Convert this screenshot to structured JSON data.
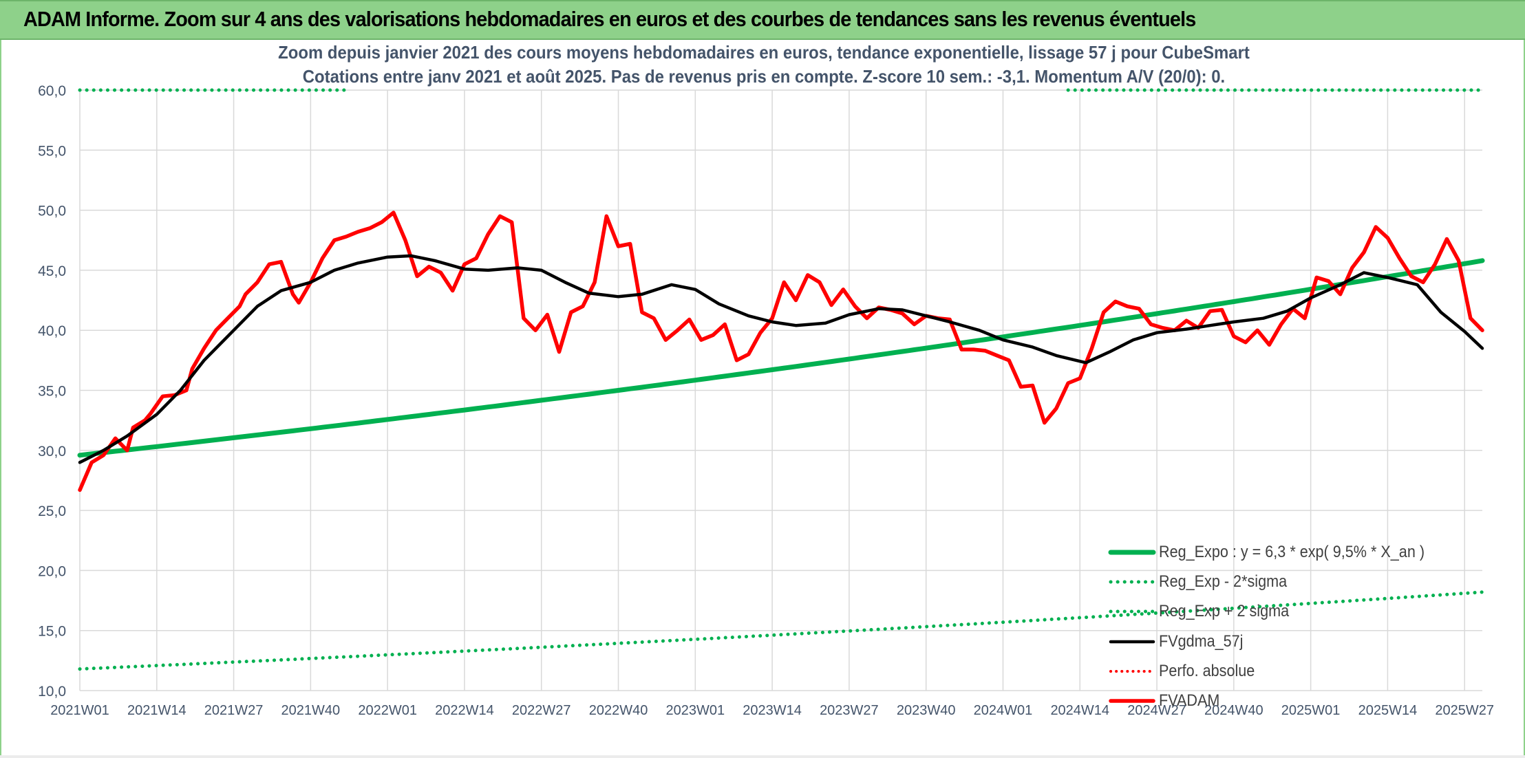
{
  "header": {
    "title": "ADAM Informe. Zoom sur 4 ans des valorisations hebdomadaires en euros et des courbes de tendances sans les revenus éventuels"
  },
  "colors": {
    "header_bg": "#8ed18a",
    "reg_expo": "#00b050",
    "fvgdma": "#000000",
    "fvadam": "#ff0000",
    "perfo": "#ff0000",
    "grid": "#d9d9d9",
    "axis_text": "#44546a"
  },
  "chart_data": {
    "type": "line",
    "title": "Zoom depuis janvier 2021 des cours moyens hebdomadaires en euros, tendance exponentielle, lissage 57 j pour CubeSmart",
    "subtitle": "Cotations entre janv 2021 et août 2025. Pas de revenus pris en compte. Z-score 10 sem.: -3,1. Momentum A/V (20/0): 0.",
    "x_ticks": [
      "2021W01",
      "2021W14",
      "2021W27",
      "2021W40",
      "2022W01",
      "2022W14",
      "2022W27",
      "2022W40",
      "2023W01",
      "2023W14",
      "2023W27",
      "2023W40",
      "2024W01",
      "2024W14",
      "2024W27",
      "2024W40",
      "2025W01",
      "2025W14",
      "2025W27"
    ],
    "y_ticks": [
      "10,0",
      "15,0",
      "20,0",
      "25,0",
      "30,0",
      "35,0",
      "40,0",
      "45,0",
      "50,0",
      "55,0",
      "60,0"
    ],
    "ylim": [
      10,
      60
    ],
    "x_range_weeks": [
      0,
      237
    ],
    "legend_position": "bottom-right",
    "grid": true,
    "legend": [
      "Reg_Expo : y = 6,3 * exp( 9,5% *  X_an )",
      "Reg_Exp - 2*sigma",
      "Reg_Exp + 2 sigma",
      "FVgdma_57j",
      "Perfo. absolue",
      "FVADAM"
    ],
    "series": [
      {
        "name": "Reg_Expo : y = 6,3 * exp( 9,5% *  X_an )",
        "style": "solid-thick",
        "x": [
          0,
          237
        ],
        "values": [
          29.6,
          45.8
        ],
        "interp": "exp"
      },
      {
        "name": "Reg_Exp - 2*sigma",
        "style": "dotted",
        "x": [
          0,
          237
        ],
        "values": [
          11.8,
          18.2
        ],
        "interp": "exp"
      },
      {
        "name": "Reg_Exp + 2 sigma",
        "style": "dotted",
        "x": [
          0,
          237
        ],
        "values": [
          60.0,
          60.0
        ],
        "segments": [
          [
            0,
            45
          ],
          [
            167,
            237
          ]
        ]
      },
      {
        "name": "FVgdma_57j",
        "style": "solid",
        "x": [
          0,
          4,
          8,
          13,
          17,
          21,
          26,
          30,
          34,
          39,
          43,
          47,
          52,
          56,
          60,
          65,
          69,
          74,
          78,
          82,
          86,
          91,
          95,
          100,
          104,
          108,
          113,
          117,
          121,
          126,
          130,
          135,
          139,
          143,
          147,
          152,
          156,
          161,
          165,
          170,
          174,
          178,
          182,
          187,
          191,
          195,
          200,
          204,
          208,
          213,
          217,
          221,
          226,
          230,
          234,
          237
        ],
        "values": [
          29.0,
          30.0,
          31.2,
          33.0,
          35.0,
          37.5,
          40.0,
          42.0,
          43.3,
          44.0,
          45.0,
          45.6,
          46.1,
          46.2,
          45.8,
          45.1,
          45.0,
          45.2,
          45.0,
          44.0,
          43.1,
          42.8,
          43.0,
          43.8,
          43.4,
          42.2,
          41.2,
          40.7,
          40.4,
          40.6,
          41.3,
          41.8,
          41.7,
          41.2,
          40.7,
          40.0,
          39.2,
          38.6,
          37.9,
          37.3,
          38.2,
          39.2,
          39.8,
          40.1,
          40.4,
          40.7,
          41.0,
          41.6,
          42.7,
          43.8,
          44.8,
          44.4,
          43.8,
          41.5,
          39.9,
          38.5
        ]
      },
      {
        "name": "FVADAM",
        "style": "solid-thick",
        "x": [
          0,
          2,
          4,
          6,
          8,
          9,
          11,
          12,
          14,
          16,
          18,
          19,
          21,
          23,
          25,
          27,
          28,
          30,
          32,
          34,
          36,
          37,
          39,
          41,
          43,
          45,
          47,
          49,
          51,
          53,
          55,
          57,
          59,
          61,
          63,
          65,
          67,
          69,
          71,
          73,
          75,
          77,
          79,
          81,
          83,
          85,
          87,
          89,
          91,
          93,
          95,
          97,
          99,
          101,
          103,
          105,
          107,
          109,
          111,
          113,
          115,
          117,
          119,
          121,
          123,
          125,
          127,
          129,
          131,
          133,
          135,
          137,
          139,
          141,
          143,
          145,
          147,
          149,
          151,
          153,
          155,
          157,
          159,
          161,
          163,
          165,
          167,
          169,
          171,
          173,
          175,
          177,
          179,
          181,
          183,
          185,
          187,
          189,
          191,
          193,
          195,
          197,
          199,
          201,
          203,
          205,
          207,
          209,
          211,
          213,
          215,
          217,
          219,
          221,
          223,
          225,
          227,
          229,
          231,
          233,
          235,
          237
        ],
        "values": [
          26.7,
          29.0,
          29.6,
          31.0,
          30.0,
          31.9,
          32.5,
          33.1,
          34.5,
          34.6,
          35.0,
          36.8,
          38.5,
          40.0,
          41.0,
          42.0,
          43.0,
          44.0,
          45.5,
          45.7,
          43.0,
          42.3,
          44.0,
          46.0,
          47.5,
          47.8,
          48.2,
          48.5,
          49.0,
          49.8,
          47.5,
          44.5,
          45.3,
          44.8,
          43.3,
          45.5,
          46.0,
          48.0,
          49.5,
          49.0,
          41.0,
          40.0,
          41.3,
          38.2,
          41.5,
          42.0,
          44.0,
          49.5,
          47.0,
          47.2,
          41.5,
          41.0,
          39.2,
          40.0,
          40.9,
          39.2,
          39.6,
          40.5,
          37.5,
          38.0,
          39.8,
          41.0,
          44.0,
          42.5,
          44.6,
          44.0,
          42.1,
          43.4,
          42.0,
          41.0,
          41.9,
          41.7,
          41.4,
          40.5,
          41.2,
          41.0,
          40.9,
          38.4,
          38.4,
          38.3,
          37.9,
          37.5,
          35.3,
          35.4,
          32.3,
          33.5,
          35.6,
          36.0,
          38.5,
          41.5,
          42.4,
          42.0,
          41.8,
          40.5,
          40.2,
          40.0,
          40.8,
          40.2,
          41.6,
          41.7,
          39.5,
          39.0,
          40.0,
          38.8,
          40.5,
          41.8,
          41.0,
          44.4,
          44.1,
          43.0,
          45.2,
          46.5,
          48.6,
          47.7,
          46.0,
          44.5,
          44.0,
          45.5,
          47.6,
          45.8,
          41.0,
          40.0
        ]
      }
    ]
  }
}
